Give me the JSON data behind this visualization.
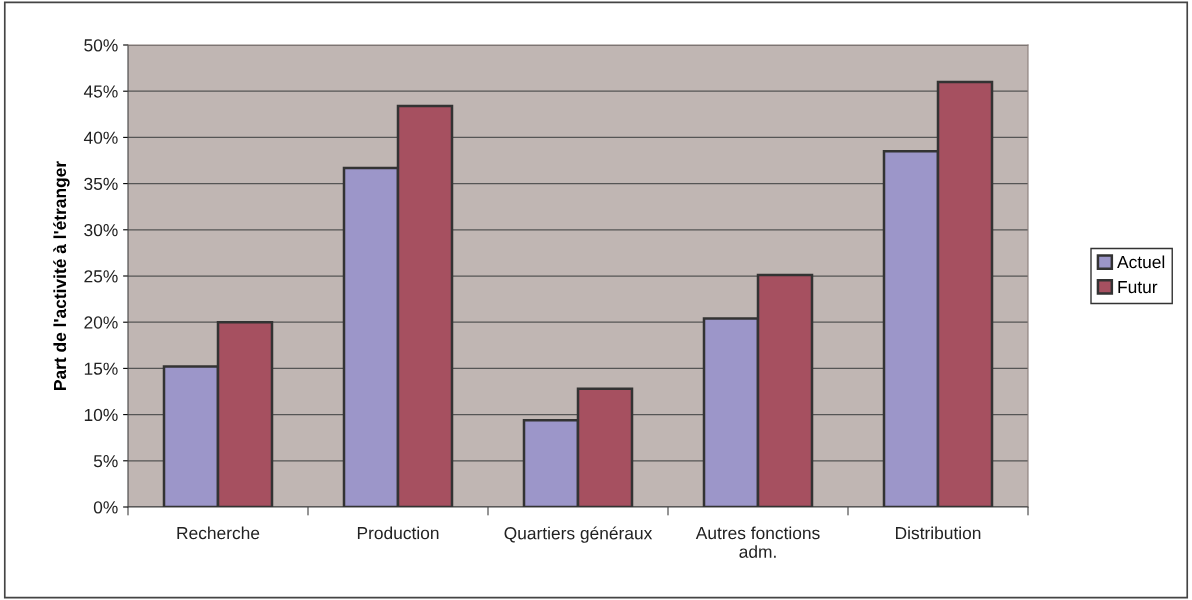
{
  "chart_data": {
    "type": "bar",
    "ylabel": "Part de l'activité à l'étranger",
    "categories": [
      "Recherche",
      "Production",
      "Quartiers généraux",
      "Autres fonctions\nadm.",
      "Distribution"
    ],
    "series": [
      {
        "name": "Actuel",
        "color": "#9c96c9",
        "values": [
          15.2,
          36.7,
          9.4,
          20.4,
          38.5
        ]
      },
      {
        "name": "Futur",
        "color": "#a65060",
        "values": [
          20.0,
          43.4,
          12.8,
          25.1,
          46.0
        ]
      }
    ],
    "ylim": [
      0,
      50
    ],
    "yticks": [
      {
        "value": 0,
        "label": "0%"
      },
      {
        "value": 5,
        "label": "5%"
      },
      {
        "value": 10,
        "label": "10%"
      },
      {
        "value": 15,
        "label": "15%"
      },
      {
        "value": 20,
        "label": "20%"
      },
      {
        "value": 25,
        "label": "25%"
      },
      {
        "value": 30,
        "label": "30%"
      },
      {
        "value": 35,
        "label": "35%"
      },
      {
        "value": 40,
        "label": "40%"
      },
      {
        "value": 45,
        "label": "45%"
      },
      {
        "value": 50,
        "label": "50%"
      }
    ],
    "grid": "y",
    "legend": "right"
  }
}
